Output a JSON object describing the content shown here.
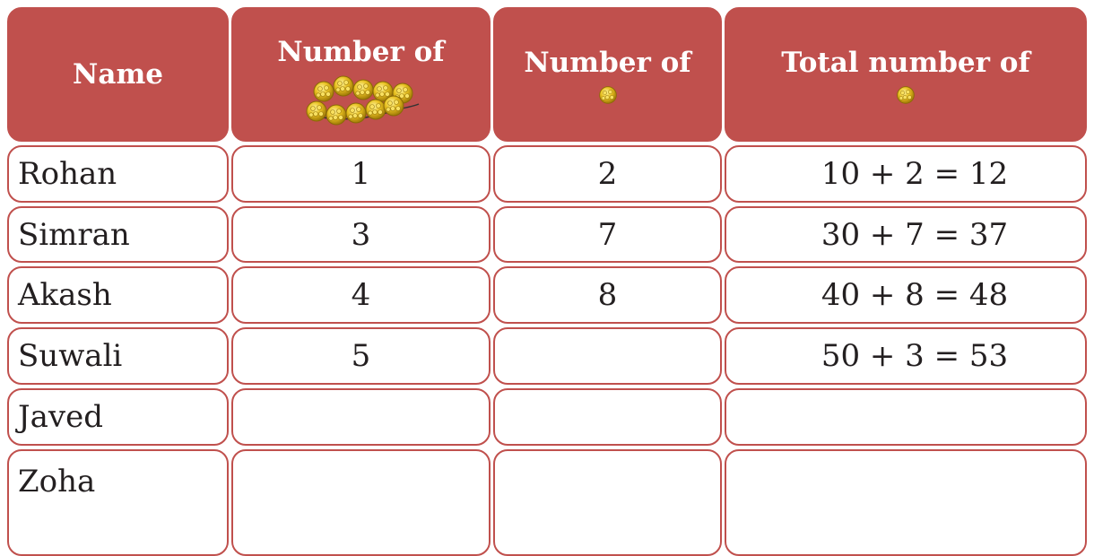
{
  "table": {
    "header": [
      "Name",
      "Number of",
      "Number of",
      "Total number of"
    ],
    "rows": [
      [
        "Rohan",
        1,
        2,
        "10 + 2 = 12"
      ],
      [
        "Simran",
        3,
        7,
        "30 + 7 = 37"
      ],
      [
        "Akash",
        4,
        8,
        "40 + 8 = 48"
      ],
      [
        "Suwali",
        5,
        null,
        "50 + 3 = 53"
      ],
      [
        "Javed",
        null,
        null,
        null
      ],
      [
        "Zoha",
        null,
        null,
        null
      ]
    ]
  }
}
